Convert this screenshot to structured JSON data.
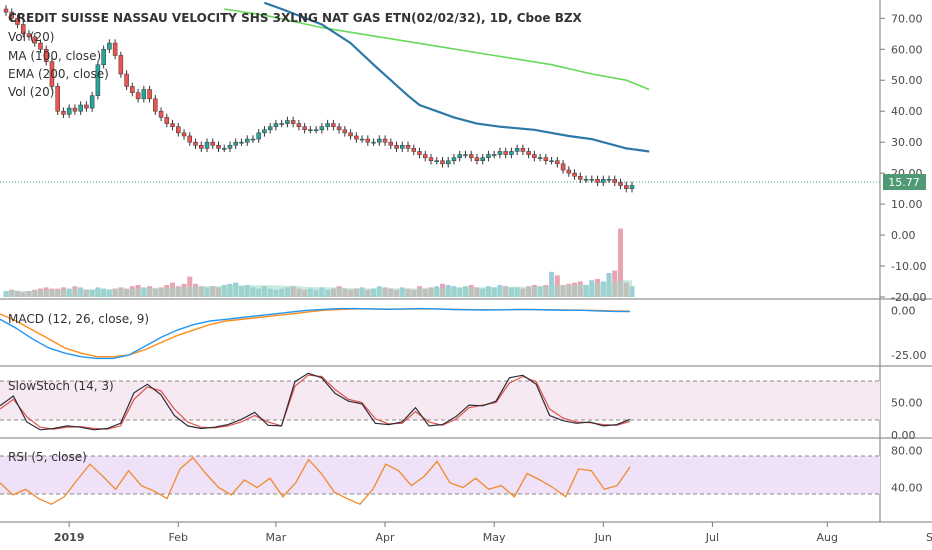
{
  "header": {
    "title": "CREDIT SUISSE NASSAU VELOCITY SHS 3XLNG NAT GAS ETN(02/02/32), 1D, Cboe BZX",
    "legend": [
      "Vol (20)",
      "MA (100, close)",
      "EMA (200, close)",
      "Vol (20)"
    ]
  },
  "panes": {
    "macd_label": "MACD (12, 26, close, 9)",
    "stoch_label": "SlowStoch (14, 3)",
    "rsi_label": "RSI (5, close)"
  },
  "last_price": "15.77",
  "colors": {
    "up": "#26a69a",
    "down": "#ef5350",
    "ma": "#2e78a8",
    "ema": "#66d95a",
    "price_tag": "#4f9a74",
    "macd": "#2196f3",
    "signal": "#ff8c1a",
    "stoch_k": "#2a2e39",
    "stoch_d": "#e0504a",
    "rsi": "#f08a2c",
    "stoch_band": "#f7e9f2",
    "rsi_band": "#efe1f8"
  },
  "chart_data": [
    {
      "type": "candlestick",
      "title": "CREDIT SUISSE NASSAU VELOCITY SHS 3XLNG NAT GAS ETN(02/02/32), 1D, Cboe BZX",
      "x_ticks": [
        "2019",
        "Feb",
        "Mar",
        "Apr",
        "May",
        "Jun",
        "Jul",
        "Aug",
        "Sep"
      ],
      "y_ticks": [
        "-20.00",
        "-10.00",
        "0.00",
        "10.00",
        "20.00",
        "30.00",
        "40.00",
        "50.00",
        "60.00",
        "70.00"
      ],
      "ylim": [
        -20,
        73
      ],
      "last_value": 15.77,
      "close": [
        72,
        70,
        68,
        65,
        64,
        62,
        60,
        56,
        48,
        40,
        39,
        41,
        40,
        42,
        41,
        45,
        55,
        60,
        62,
        58,
        52,
        48,
        46,
        44,
        47,
        44,
        40,
        38,
        36,
        35,
        33,
        32,
        30,
        29,
        28,
        30,
        29,
        28,
        28,
        29,
        30,
        30,
        31,
        31,
        33,
        34,
        35,
        36,
        36,
        37,
        36,
        35,
        34,
        34,
        34,
        35,
        36,
        35,
        34,
        33,
        32,
        31,
        31,
        30,
        30,
        31,
        30,
        29,
        28,
        29,
        28,
        27,
        26,
        25,
        24,
        24,
        23,
        24,
        25,
        26,
        26,
        25,
        24,
        25,
        26,
        26,
        27,
        26,
        27,
        28,
        27,
        26,
        25,
        25,
        24,
        24,
        23,
        21,
        20,
        19,
        18,
        18,
        18,
        17,
        18,
        18,
        17,
        16,
        15,
        16
      ],
      "volume": [
        5,
        6,
        5,
        4,
        5,
        6,
        7,
        8,
        7,
        7,
        8,
        7,
        9,
        8,
        6,
        6,
        8,
        7,
        6,
        7,
        8,
        7,
        9,
        10,
        8,
        9,
        7,
        8,
        10,
        12,
        9,
        11,
        17,
        11,
        9,
        8,
        9,
        8,
        10,
        11,
        12,
        9,
        10,
        8,
        7,
        9,
        7,
        6,
        7,
        8,
        9,
        7,
        6,
        7,
        6,
        8,
        6,
        7,
        9,
        7,
        6,
        7,
        8,
        6,
        7,
        9,
        8,
        7,
        6,
        8,
        7,
        6,
        9,
        7,
        8,
        9,
        11,
        10,
        9,
        8,
        9,
        10,
        8,
        7,
        9,
        8,
        10,
        9,
        8,
        8,
        7,
        9,
        10,
        9,
        10,
        21,
        18,
        10,
        11,
        12,
        13,
        10,
        14,
        15,
        13,
        20,
        22,
        57,
        12,
        9
      ],
      "ma_100": [
        [
          45,
          75
        ],
        [
          48,
          73
        ],
        [
          55,
          68
        ],
        [
          60,
          62
        ],
        [
          64,
          55
        ],
        [
          67,
          50
        ],
        [
          70,
          45
        ],
        [
          72,
          42
        ],
        [
          75,
          40
        ],
        [
          78,
          38
        ],
        [
          82,
          36
        ],
        [
          86,
          35
        ],
        [
          92,
          34
        ],
        [
          95,
          33
        ],
        [
          98,
          32
        ],
        [
          102,
          31
        ],
        [
          106,
          29
        ],
        [
          108,
          28
        ],
        [
          110,
          27.5
        ],
        [
          112,
          27
        ]
      ],
      "ema_200": [
        [
          38,
          73
        ],
        [
          45,
          71
        ],
        [
          55,
          67
        ],
        [
          65,
          64
        ],
        [
          75,
          61
        ],
        [
          85,
          58
        ],
        [
          95,
          55
        ],
        [
          102,
          52
        ],
        [
          108,
          50
        ],
        [
          112,
          47
        ]
      ]
    },
    {
      "type": "line",
      "title": "MACD (12, 26, close, 9)",
      "y_ticks": [
        "0.00",
        "-25.00"
      ],
      "series": [
        {
          "name": "MACD",
          "values": [
            -5,
            -10,
            -16,
            -21,
            -24,
            -26,
            -27,
            -27,
            -25,
            -20,
            -15,
            -11,
            -8,
            -6,
            -5,
            -4,
            -3,
            -2,
            -1,
            0,
            0.5,
            1,
            1,
            0.8,
            0.6,
            0.8,
            1,
            0.8,
            0.5,
            0.3,
            0.2,
            0.3,
            0.5,
            0.4,
            0.2,
            0.1,
            0,
            -0.3,
            -0.6,
            -0.7
          ]
        },
        {
          "name": "Signal",
          "values": [
            -2,
            -6,
            -11,
            -16,
            -21,
            -24,
            -26,
            -26,
            -25,
            -22,
            -18,
            -14,
            -11,
            -8,
            -6,
            -5,
            -4,
            -3,
            -2,
            -1,
            0,
            0.5,
            0.8,
            0.8,
            0.7,
            0.7,
            0.8,
            0.8,
            0.6,
            0.4,
            0.3,
            0.3,
            0.4,
            0.4,
            0.3,
            0.2,
            0.1,
            -0.1,
            -0.3,
            -0.5
          ]
        }
      ]
    },
    {
      "type": "line",
      "title": "SlowStoch (14, 3)",
      "y_ticks": [
        "0.00",
        "50.00"
      ],
      "series": [
        {
          "name": "%K",
          "values": [
            45,
            60,
            20,
            8,
            10,
            14,
            12,
            8,
            10,
            18,
            65,
            78,
            62,
            30,
            14,
            10,
            12,
            16,
            24,
            35,
            15,
            14,
            82,
            95,
            88,
            64,
            52,
            48,
            18,
            16,
            20,
            42,
            14,
            16,
            28,
            46,
            45,
            52,
            88,
            92,
            78,
            30,
            22,
            18,
            20,
            14,
            16,
            24
          ]
        },
        {
          "name": "%D",
          "values": [
            40,
            55,
            28,
            12,
            9,
            12,
            13,
            10,
            9,
            14,
            55,
            74,
            68,
            40,
            20,
            12,
            11,
            14,
            20,
            30,
            20,
            14,
            75,
            92,
            90,
            70,
            55,
            50,
            25,
            17,
            18,
            36,
            20,
            15,
            24,
            42,
            46,
            50,
            80,
            90,
            82,
            40,
            26,
            20,
            19,
            16,
            15,
            21
          ]
        }
      ]
    },
    {
      "type": "line",
      "title": "RSI (5, close)",
      "y_ticks": [
        "40.00",
        "80.00"
      ],
      "series": [
        {
          "name": "RSI",
          "values": [
            45,
            32,
            38,
            28,
            22,
            30,
            48,
            65,
            52,
            38,
            58,
            42,
            36,
            28,
            60,
            72,
            55,
            40,
            32,
            48,
            40,
            50,
            30,
            45,
            70,
            55,
            35,
            28,
            22,
            38,
            65,
            58,
            42,
            52,
            68,
            45,
            40,
            50,
            38,
            42,
            30,
            55,
            48,
            40,
            30,
            60,
            58,
            38,
            42,
            62
          ]
        }
      ]
    }
  ]
}
